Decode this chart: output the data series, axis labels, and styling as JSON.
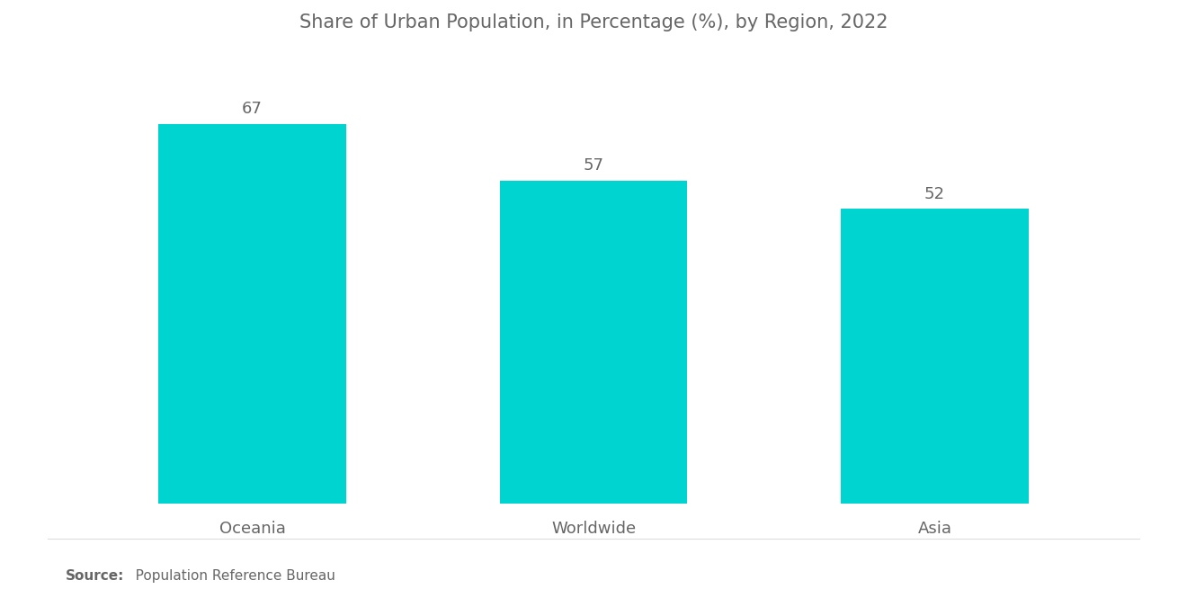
{
  "title": "Share of Urban Population, in Percentage (%), by Region, 2022",
  "categories": [
    "Oceania",
    "Worldwide",
    "Asia"
  ],
  "values": [
    67,
    57,
    52
  ],
  "bar_color": "#00D4D0",
  "label_color": "#666666",
  "title_color": "#666666",
  "background_color": "#ffffff",
  "source_bold": "Source:",
  "source_normal": "   Population Reference Bureau",
  "title_fontsize": 15,
  "label_fontsize": 13,
  "value_fontsize": 13,
  "source_fontsize": 11,
  "ylim": [
    0,
    80
  ],
  "bar_width": 0.55
}
